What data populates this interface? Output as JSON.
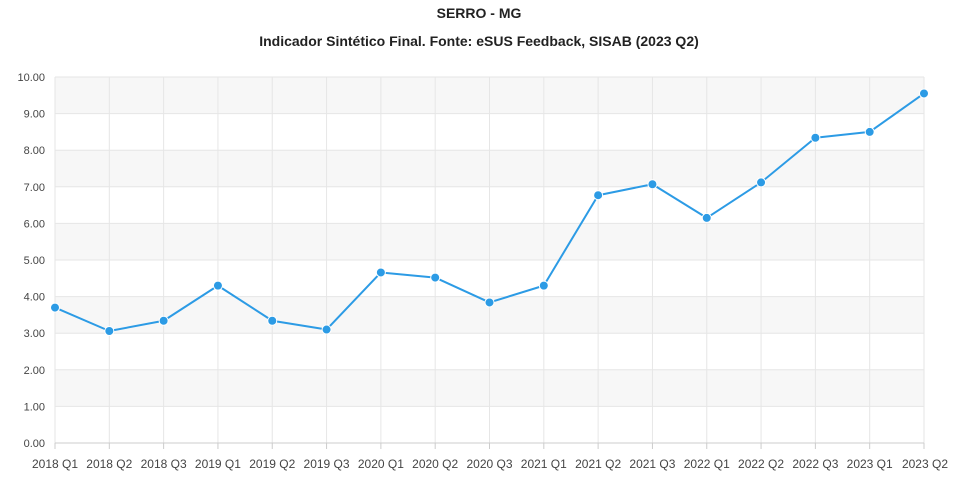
{
  "chart_data": {
    "type": "line",
    "title": "SERRO - MG",
    "subtitle": "Indicador Sintético Final. Fonte: eSUS Feedback, SISAB (2023 Q2)",
    "xlabel": "",
    "ylabel": "",
    "categories": [
      "2018 Q1",
      "2018 Q2",
      "2018 Q3",
      "2019 Q1",
      "2019 Q2",
      "2019 Q3",
      "2020 Q1",
      "2020 Q2",
      "2020 Q3",
      "2021 Q1",
      "2021 Q2",
      "2021 Q3",
      "2022 Q1",
      "2022 Q2",
      "2022 Q3",
      "2023 Q1",
      "2023 Q2"
    ],
    "series": [
      {
        "values": [
          3.7,
          3.06,
          3.34,
          4.3,
          3.34,
          3.1,
          4.66,
          4.52,
          3.84,
          4.3,
          6.77,
          7.07,
          6.15,
          7.12,
          8.34,
          8.5,
          9.55
        ],
        "color": "#2c9be5"
      }
    ],
    "ylim": [
      0,
      10
    ],
    "yticks": [
      0,
      1,
      2,
      3,
      4,
      5,
      6,
      7,
      8,
      9,
      10
    ],
    "ytick_labels": [
      "0.00",
      "1.00",
      "2.00",
      "3.00",
      "4.00",
      "5.00",
      "6.00",
      "7.00",
      "8.00",
      "9.00",
      "10.00"
    ],
    "grid": true,
    "band_color": "#f7f7f7",
    "grid_color": "#e6e6e6",
    "legend": "none"
  }
}
